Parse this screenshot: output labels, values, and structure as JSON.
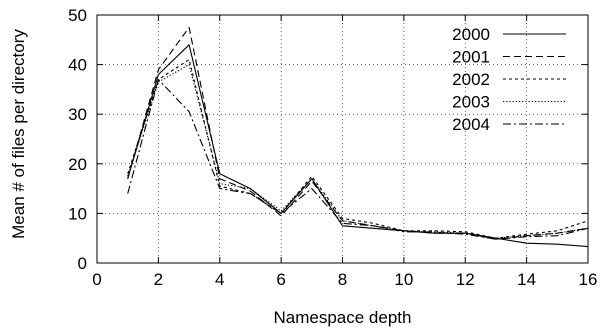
{
  "chart_data": {
    "type": "line",
    "title": "",
    "xlabel": "Namespace depth",
    "ylabel": "Mean # of files per directory",
    "xlim": [
      0,
      16
    ],
    "ylim": [
      0,
      50
    ],
    "xticks": [
      0,
      2,
      4,
      6,
      8,
      10,
      12,
      14,
      16
    ],
    "yticks": [
      0,
      10,
      20,
      30,
      40,
      50
    ],
    "grid": true,
    "legend_position": "top-right",
    "x": [
      1,
      2,
      3,
      4,
      5,
      6,
      7,
      8,
      9,
      10,
      11,
      12,
      13,
      14,
      15,
      16
    ],
    "series": [
      {
        "name": "2000",
        "style": "solid",
        "values": [
          17,
          38,
          44,
          18,
          15,
          10,
          17,
          7.5,
          7,
          6.5,
          6,
          6,
          5,
          4,
          3.8,
          3.3
        ]
      },
      {
        "name": "2001",
        "style": "dashed",
        "values": [
          17,
          39,
          47.5,
          17,
          14.5,
          9.5,
          16.5,
          8.5,
          7.5,
          6.5,
          6,
          6,
          4.8,
          5.5,
          6,
          7
        ]
      },
      {
        "name": "2002",
        "style": "dotted-fine",
        "values": [
          18,
          37,
          41,
          15.5,
          14,
          10,
          17.5,
          9,
          8,
          6.5,
          6.5,
          6.3,
          5,
          5.8,
          6.5,
          8.5
        ]
      },
      {
        "name": "2003",
        "style": "dotted",
        "values": [
          17.5,
          36.5,
          40,
          16,
          15,
          10.5,
          17,
          8.5,
          7.5,
          6.5,
          6.3,
          6,
          5,
          5.5,
          6,
          7
        ]
      },
      {
        "name": "2004",
        "style": "dashdot",
        "values": [
          14,
          37,
          30.5,
          15,
          14,
          10,
          15,
          8,
          7.5,
          6.3,
          6.2,
          5.8,
          4.8,
          5.3,
          5.5,
          7
        ]
      }
    ]
  }
}
